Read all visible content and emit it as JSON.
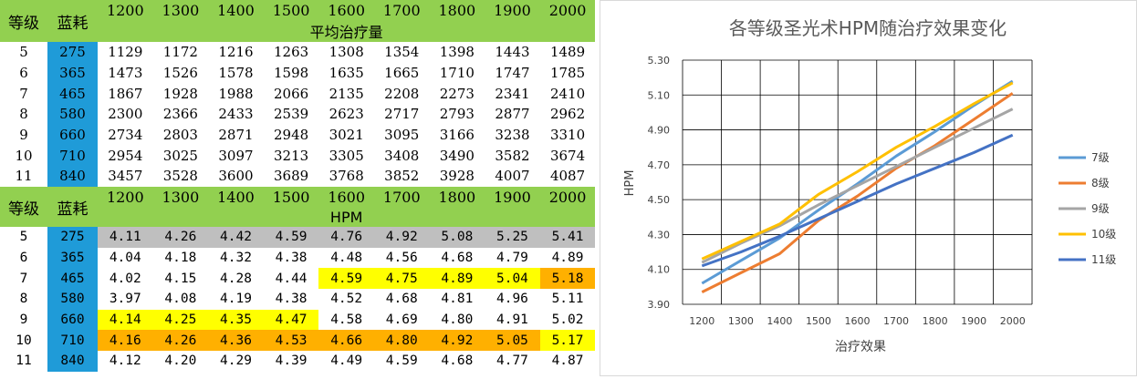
{
  "table_top": {
    "header_level": "等级",
    "header_cost": "蓝耗",
    "columns": [
      "1200",
      "1300",
      "1400",
      "1500",
      "1600",
      "1700",
      "1800",
      "1900",
      "2000"
    ],
    "subheader": "平均治疗量",
    "rows": [
      {
        "level": "5",
        "cost": "275",
        "values": [
          "1129",
          "1172",
          "1216",
          "1263",
          "1308",
          "1354",
          "1398",
          "1443",
          "1489"
        ]
      },
      {
        "level": "6",
        "cost": "365",
        "values": [
          "1473",
          "1526",
          "1578",
          "1598",
          "1635",
          "1665",
          "1710",
          "1747",
          "1785"
        ]
      },
      {
        "level": "7",
        "cost": "465",
        "values": [
          "1867",
          "1928",
          "1988",
          "2066",
          "2135",
          "2208",
          "2273",
          "2341",
          "2410"
        ]
      },
      {
        "level": "8",
        "cost": "580",
        "values": [
          "2300",
          "2366",
          "2433",
          "2539",
          "2623",
          "2717",
          "2793",
          "2877",
          "2962"
        ]
      },
      {
        "level": "9",
        "cost": "660",
        "values": [
          "2734",
          "2803",
          "2871",
          "2948",
          "3021",
          "3095",
          "3166",
          "3238",
          "3310"
        ]
      },
      {
        "level": "10",
        "cost": "710",
        "values": [
          "2954",
          "3025",
          "3097",
          "3213",
          "3305",
          "3408",
          "3490",
          "3582",
          "3674"
        ]
      },
      {
        "level": "11",
        "cost": "840",
        "values": [
          "3457",
          "3528",
          "3600",
          "3689",
          "3768",
          "3852",
          "3928",
          "4007",
          "4087"
        ]
      }
    ]
  },
  "table_bottom": {
    "header_level": "等级",
    "header_cost": "蓝耗",
    "columns": [
      "1200",
      "1300",
      "1400",
      "1500",
      "1600",
      "1700",
      "1800",
      "1900",
      "2000"
    ],
    "subheader": "HPM",
    "rows": [
      {
        "level": "5",
        "cost": "275",
        "values": [
          "4.11",
          "4.26",
          "4.42",
          "4.59",
          "4.76",
          "4.92",
          "5.08",
          "5.25",
          "5.41"
        ]
      },
      {
        "level": "6",
        "cost": "365",
        "values": [
          "4.04",
          "4.18",
          "4.32",
          "4.38",
          "4.48",
          "4.56",
          "4.68",
          "4.79",
          "4.89"
        ]
      },
      {
        "level": "7",
        "cost": "465",
        "values": [
          "4.02",
          "4.15",
          "4.28",
          "4.44",
          "4.59",
          "4.75",
          "4.89",
          "5.04",
          "5.18"
        ]
      },
      {
        "level": "8",
        "cost": "580",
        "values": [
          "3.97",
          "4.08",
          "4.19",
          "4.38",
          "4.52",
          "4.68",
          "4.81",
          "4.96",
          "5.11"
        ]
      },
      {
        "level": "9",
        "cost": "660",
        "values": [
          "4.14",
          "4.25",
          "4.35",
          "4.47",
          "4.58",
          "4.69",
          "4.80",
          "4.91",
          "5.02"
        ]
      },
      {
        "level": "10",
        "cost": "710",
        "values": [
          "4.16",
          "4.26",
          "4.36",
          "4.53",
          "4.66",
          "4.80",
          "4.92",
          "5.05",
          "5.17"
        ]
      },
      {
        "level": "11",
        "cost": "840",
        "values": [
          "4.12",
          "4.20",
          "4.29",
          "4.39",
          "4.49",
          "4.59",
          "4.68",
          "4.77",
          "4.87"
        ]
      }
    ],
    "highlights": [
      [
        "gray",
        "gray",
        "gray",
        "gray",
        "gray",
        "gray",
        "gray",
        "gray",
        "gray"
      ],
      [
        "",
        "",
        "",
        "",
        "",
        "",
        "",
        "",
        ""
      ],
      [
        "",
        "",
        "",
        "",
        "yellow",
        "yellow",
        "yellow",
        "yellow",
        "orange"
      ],
      [
        "",
        "",
        "",
        "",
        "",
        "",
        "",
        "",
        ""
      ],
      [
        "yellow",
        "yellow",
        "yellow",
        "yellow",
        "",
        "",
        "",
        "",
        ""
      ],
      [
        "orange",
        "orange",
        "orange",
        "orange",
        "orange",
        "orange",
        "orange",
        "orange",
        "yellow"
      ],
      [
        "",
        "",
        "",
        "",
        "",
        "",
        "",
        "",
        ""
      ]
    ],
    "highlight_colors": {
      "gray": "#bfbfbf",
      "yellow": "#ffff00",
      "orange": "#ffb000"
    }
  },
  "chart_data": {
    "type": "line",
    "title": "各等级圣光术HPM随治疗效果变化",
    "xlabel": "治疗效果",
    "ylabel": "HPM",
    "categories": [
      "1200",
      "1300",
      "1400",
      "1500",
      "1600",
      "1700",
      "1800",
      "1900",
      "2000"
    ],
    "ylim": [
      3.9,
      5.3
    ],
    "yticks": [
      "3.90",
      "4.10",
      "4.30",
      "4.50",
      "4.70",
      "4.90",
      "5.10",
      "5.30"
    ],
    "grid": true,
    "legend": "right",
    "series": [
      {
        "name": "7级",
        "color": "#5b9bd5",
        "values": [
          4.02,
          4.15,
          4.28,
          4.44,
          4.59,
          4.75,
          4.89,
          5.04,
          5.18
        ]
      },
      {
        "name": "8级",
        "color": "#ed7d31",
        "values": [
          3.97,
          4.08,
          4.19,
          4.38,
          4.52,
          4.68,
          4.81,
          4.96,
          5.11
        ]
      },
      {
        "name": "9级",
        "color": "#a5a5a5",
        "values": [
          4.14,
          4.25,
          4.35,
          4.47,
          4.58,
          4.69,
          4.8,
          4.91,
          5.02
        ]
      },
      {
        "name": "10级",
        "color": "#ffc000",
        "values": [
          4.16,
          4.26,
          4.36,
          4.53,
          4.66,
          4.8,
          4.92,
          5.05,
          5.17
        ]
      },
      {
        "name": "11级",
        "color": "#4472c4",
        "values": [
          4.12,
          4.2,
          4.29,
          4.39,
          4.49,
          4.59,
          4.68,
          4.77,
          4.87
        ]
      }
    ]
  }
}
